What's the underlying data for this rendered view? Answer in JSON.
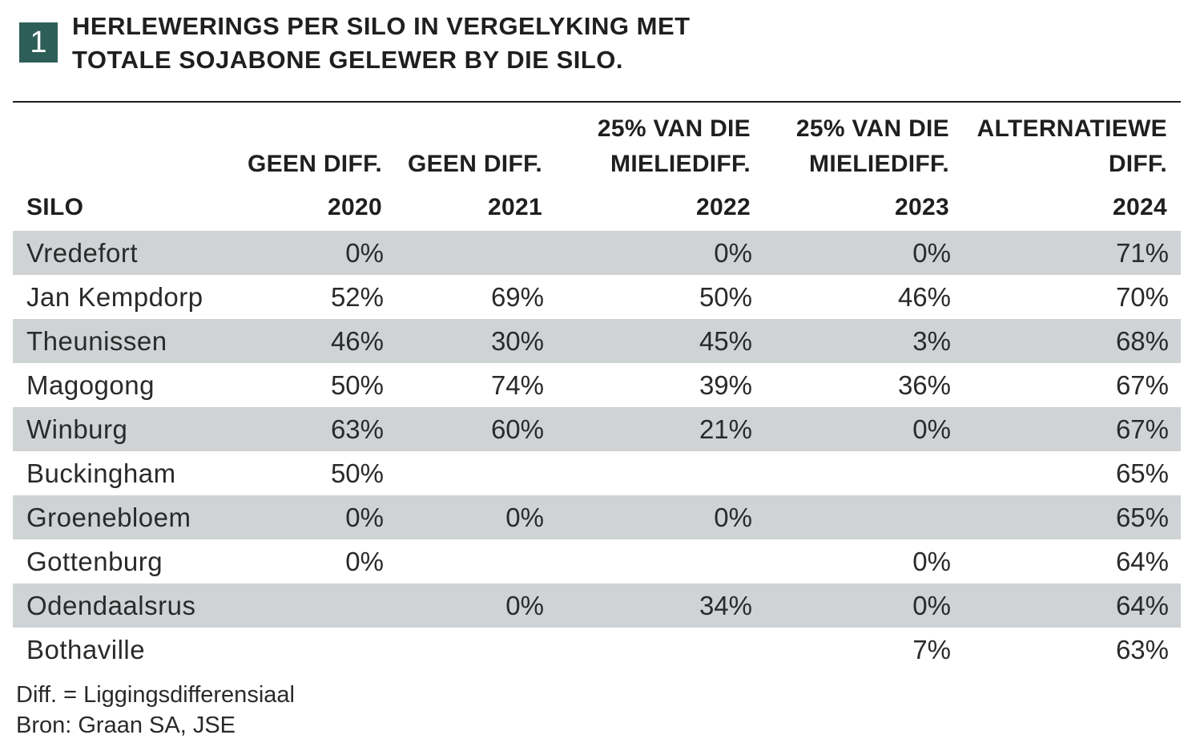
{
  "figure": {
    "number": "1",
    "title_line1": "HERLEWERINGS PER SILO IN VERGELYKING MET",
    "title_line2": "TOTALE SOJABONE GELEWER BY DIE SILO."
  },
  "table": {
    "headers": {
      "silo": "SILO",
      "col2020_line1": "GEEN DIFF.",
      "col2020_year": "2020",
      "col2021_line1": "GEEN DIFF.",
      "col2021_year": "2021",
      "col2022_line1": "25% VAN DIE",
      "col2022_line2": "MIELIEDIFF.",
      "col2022_year": "2022",
      "col2023_line1": "25% VAN DIE",
      "col2023_line2": "MIELIEDIFF.",
      "col2023_year": "2023",
      "col2024_line1": "ALTERNATIEWE",
      "col2024_line2": "DIFF.",
      "col2024_year": "2024"
    },
    "rows": [
      {
        "silo": "Vredefort",
        "y2020": "0%",
        "y2021": "",
        "y2022": "0%",
        "y2023": "0%",
        "y2024": "71%"
      },
      {
        "silo": "Jan Kempdorp",
        "y2020": "52%",
        "y2021": "69%",
        "y2022": "50%",
        "y2023": "46%",
        "y2024": "70%"
      },
      {
        "silo": "Theunissen",
        "y2020": "46%",
        "y2021": "30%",
        "y2022": "45%",
        "y2023": "3%",
        "y2024": "68%"
      },
      {
        "silo": "Magogong",
        "y2020": "50%",
        "y2021": "74%",
        "y2022": "39%",
        "y2023": "36%",
        "y2024": "67%"
      },
      {
        "silo": "Winburg",
        "y2020": "63%",
        "y2021": "60%",
        "y2022": "21%",
        "y2023": "0%",
        "y2024": "67%"
      },
      {
        "silo": "Buckingham",
        "y2020": "50%",
        "y2021": "",
        "y2022": "",
        "y2023": "",
        "y2024": "65%"
      },
      {
        "silo": "Groenebloem",
        "y2020": "0%",
        "y2021": "0%",
        "y2022": "0%",
        "y2023": "",
        "y2024": "65%"
      },
      {
        "silo": "Gottenburg",
        "y2020": "0%",
        "y2021": "",
        "y2022": "",
        "y2023": "0%",
        "y2024": "64%"
      },
      {
        "silo": "Odendaalsrus",
        "y2020": "",
        "y2021": "0%",
        "y2022": "34%",
        "y2023": "0%",
        "y2024": "64%"
      },
      {
        "silo": "Bothaville",
        "y2020": "",
        "y2021": "",
        "y2022": "",
        "y2023": "7%",
        "y2024": "63%"
      }
    ]
  },
  "footnotes": {
    "definition": "Diff. = Liggingsdifferensiaal",
    "source": "Bron: Graan SA, JSE"
  },
  "colors": {
    "badge": "#2e5e58",
    "row_shade": "#d0d3d5",
    "rule": "#1f1f1f"
  }
}
